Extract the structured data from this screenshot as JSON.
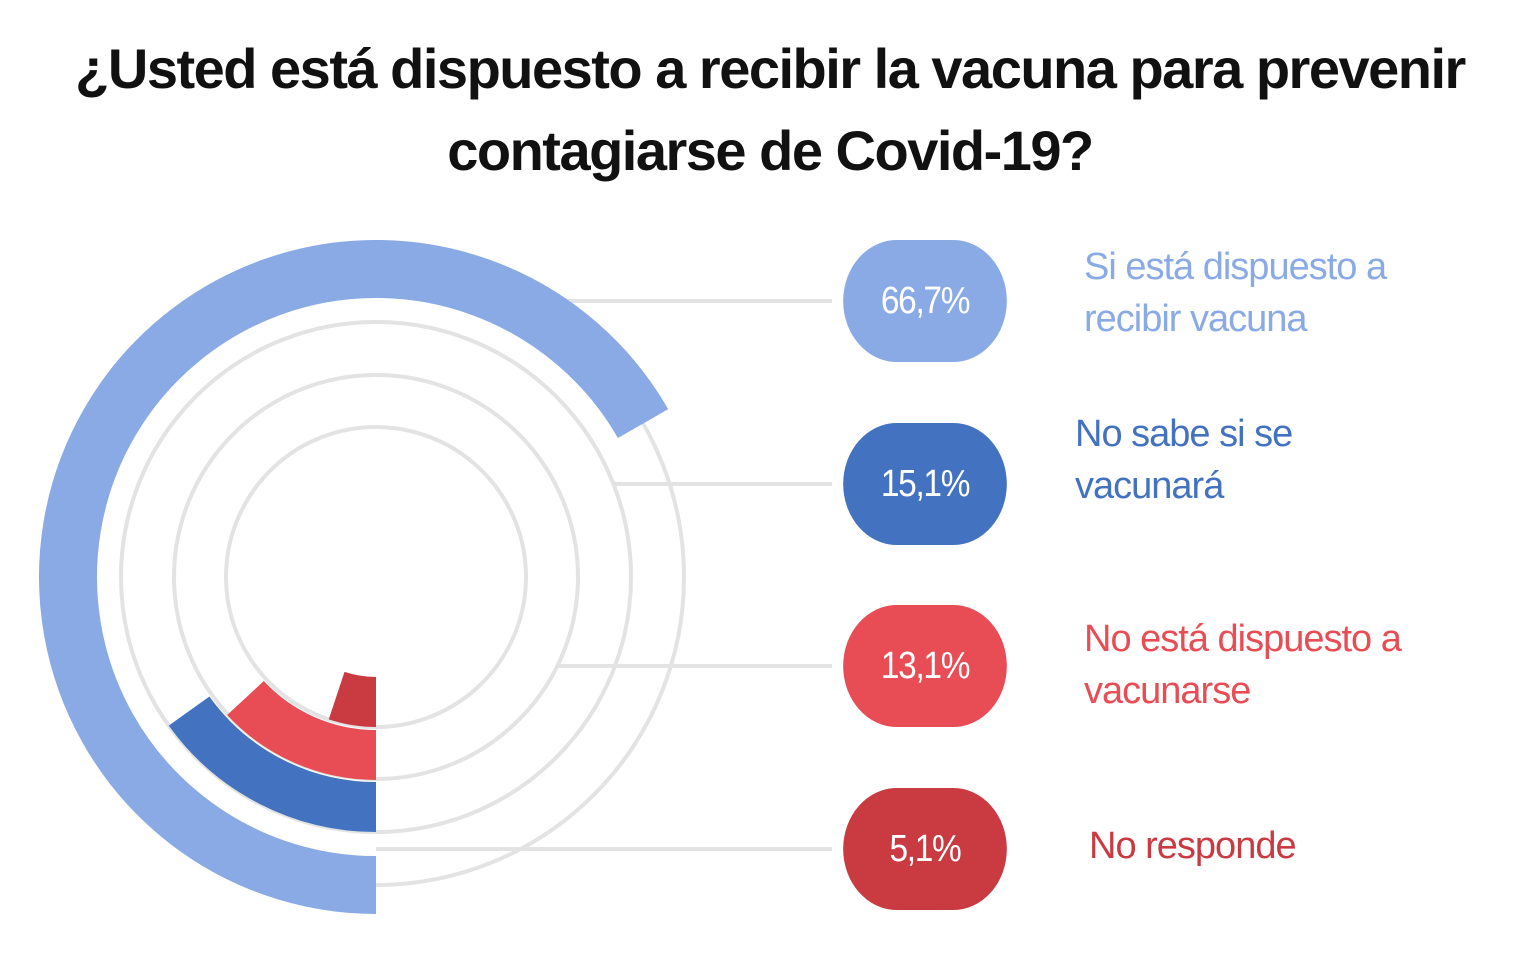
{
  "chart_data": {
    "type": "radial-bar",
    "title": "¿Usted está dispuesto a recibir la vacuna para prevenir contagiarse de Covid-19?",
    "unit": "%",
    "series": [
      {
        "name": "Si está dispuesto a recibir vacuna",
        "value": 66.7,
        "label": "66,7%",
        "color": "#8aaae5"
      },
      {
        "name": "No sabe si se vacunará",
        "value": 15.1,
        "label": "15,1%",
        "color": "#4372c0"
      },
      {
        "name": "No está dispuesto a vacunarse",
        "value": 13.1,
        "label": "13,1%",
        "color": "#e84c54"
      },
      {
        "name": "No responde",
        "value": 5.1,
        "label": "5,1%",
        "color": "#c93a41"
      }
    ],
    "track_color": "#e3e3e3"
  }
}
